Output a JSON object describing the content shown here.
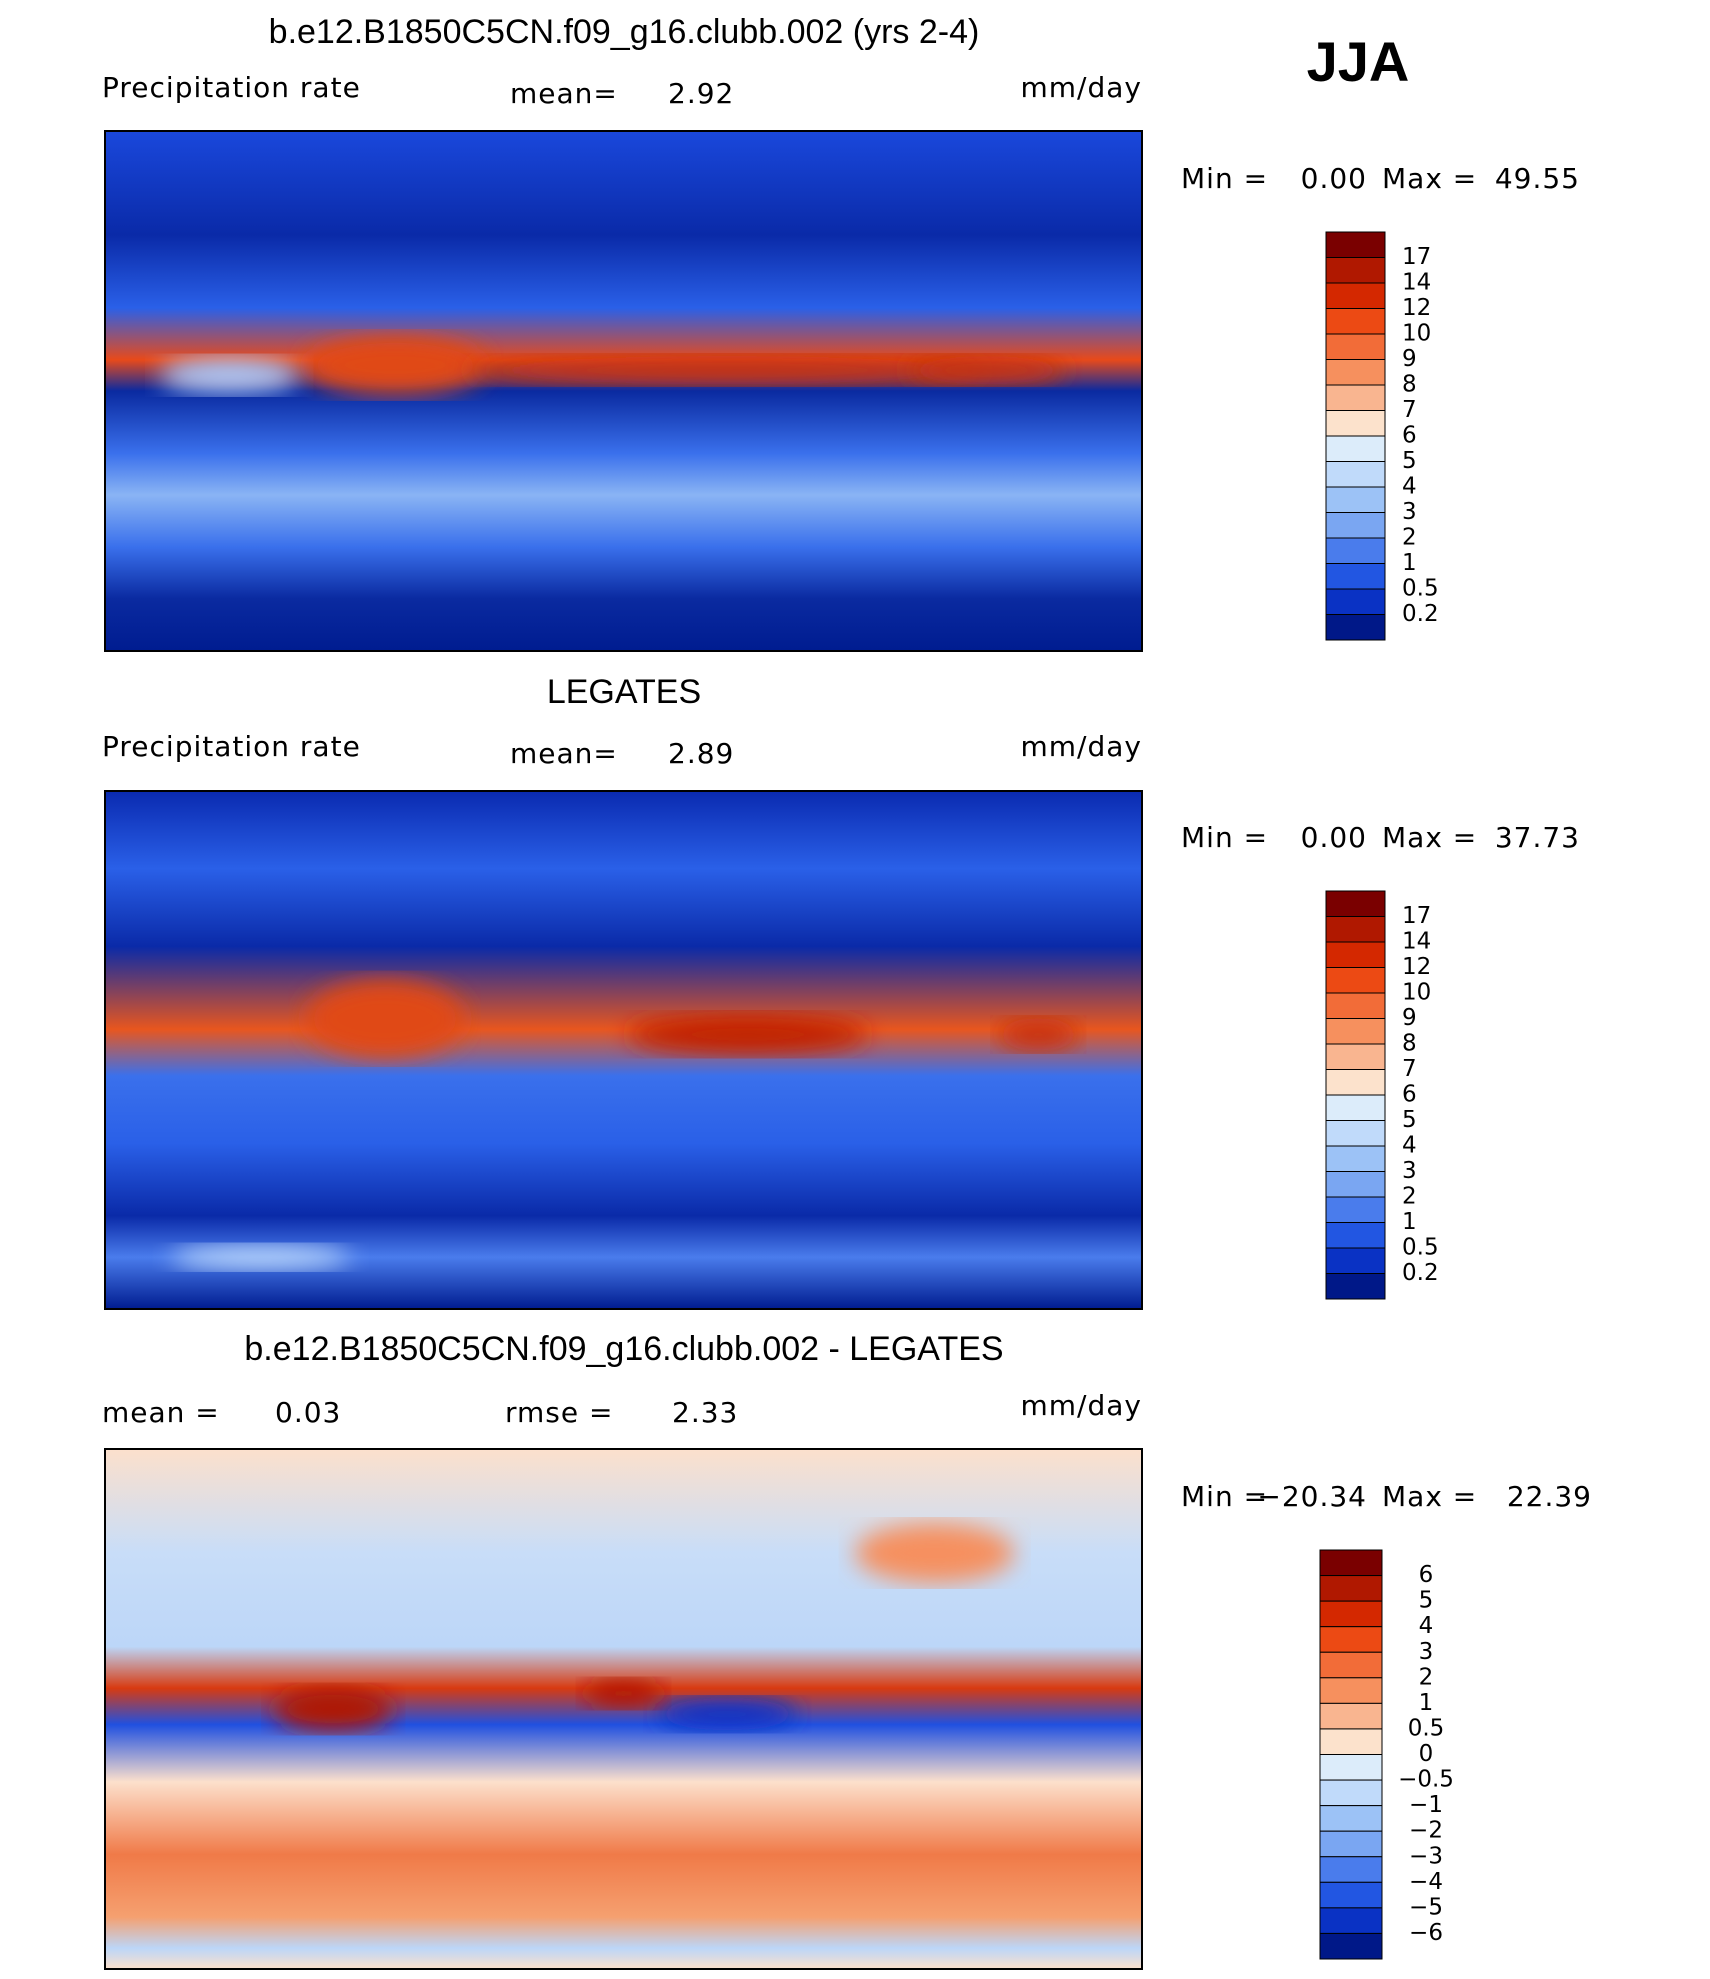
{
  "header": {
    "season": "JJA"
  },
  "panels": [
    {
      "title": "b.e12.B1850C5CN.f09_g16.clubb.002 (yrs 2-4)",
      "left_label": "Precipitation rate",
      "stats": [
        {
          "label": "mean=",
          "value": "2.92"
        }
      ],
      "units": "mm/day",
      "min_label": "Min =",
      "min_value": "0.00",
      "max_label": "Max =",
      "max_value": "49.55",
      "colorbar": {
        "labels": [
          "17",
          "14",
          "12",
          "10",
          "9",
          "8",
          "7",
          "6",
          "5",
          "4",
          "3",
          "2",
          "1",
          "0.5",
          "0.2"
        ],
        "colors": [
          "#7a0000",
          "#b01800",
          "#d42800",
          "#ec4a14",
          "#f26c38",
          "#f6905e",
          "#f9b590",
          "#fce2cc",
          "#dcecfa",
          "#c0dafa",
          "#9cc2f6",
          "#7aa6f2",
          "#4a7cec",
          "#2256e2",
          "#0a32c4",
          "#001888"
        ]
      }
    },
    {
      "title": "LEGATES",
      "left_label": "Precipitation rate",
      "stats": [
        {
          "label": "mean=",
          "value": "2.89"
        }
      ],
      "units": "mm/day",
      "min_label": "Min =",
      "min_value": "0.00",
      "max_label": "Max =",
      "max_value": "37.73",
      "colorbar": {
        "labels": [
          "17",
          "14",
          "12",
          "10",
          "9",
          "8",
          "7",
          "6",
          "5",
          "4",
          "3",
          "2",
          "1",
          "0.5",
          "0.2"
        ],
        "colors": [
          "#7a0000",
          "#b01800",
          "#d42800",
          "#ec4a14",
          "#f26c38",
          "#f6905e",
          "#f9b590",
          "#fce2cc",
          "#dcecfa",
          "#c0dafa",
          "#9cc2f6",
          "#7aa6f2",
          "#4a7cec",
          "#2256e2",
          "#0a32c4",
          "#001888"
        ]
      }
    },
    {
      "title": "b.e12.B1850C5CN.f09_g16.clubb.002 - LEGATES",
      "stats": [
        {
          "label": "mean =",
          "value": "0.03"
        },
        {
          "label": "rmse =",
          "value": "2.33"
        }
      ],
      "units": "mm/day",
      "min_label": "Min =",
      "min_value": "−20.34",
      "max_label": "Max =",
      "max_value": "22.39",
      "colorbar": {
        "labels": [
          "6",
          "5",
          "4",
          "3",
          "2",
          "1",
          "0.5",
          "0",
          "−0.5",
          "−1",
          "−2",
          "−3",
          "−4",
          "−5",
          "−6"
        ],
        "colors": [
          "#7a0000",
          "#b01800",
          "#d42800",
          "#ec4a14",
          "#f26c38",
          "#f6905e",
          "#f9b590",
          "#fce2cc",
          "#dcecfa",
          "#c0dafa",
          "#9cc2f6",
          "#7aa6f2",
          "#4a7cec",
          "#2256e2",
          "#0a32c4",
          "#001888"
        ]
      }
    }
  ]
}
